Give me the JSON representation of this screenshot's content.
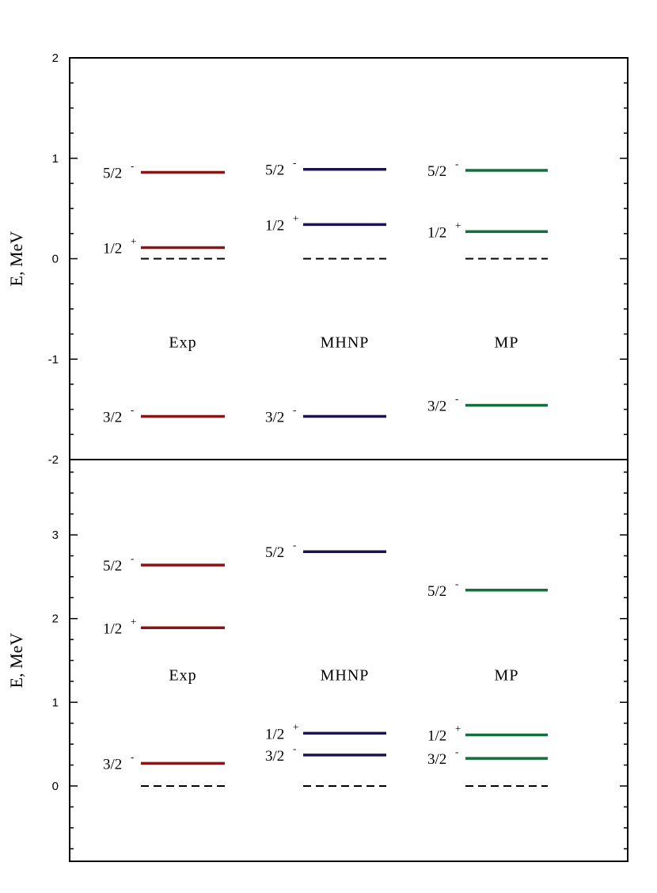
{
  "colors": {
    "Exp": "#8b1414",
    "MHNP": "#1c1450",
    "MP": "#12703a",
    "reference": "#000000",
    "frame": "#000000"
  },
  "chart_data": [
    {
      "type": "level-scheme",
      "ylabel": "E, MeV",
      "ylim": [
        -2,
        2
      ],
      "major_ticks": [
        -2,
        -1,
        0,
        1,
        2
      ],
      "minor_step": 0.25,
      "tick_labels": [
        "-2",
        "-1",
        "0",
        "1",
        "2"
      ],
      "columns": [
        {
          "name": "Exp",
          "label": "Exp",
          "label_energy": -0.83,
          "levels": [
            {
              "spin": "5/2",
              "parity": "-",
              "energy": 0.86
            },
            {
              "spin": "1/2",
              "parity": "+",
              "energy": 0.11
            },
            {
              "spin": "3/2",
              "parity": "-",
              "energy": -1.57
            }
          ],
          "reference_energy": 0
        },
        {
          "name": "MHNP",
          "label": "MHNP",
          "label_energy": -0.83,
          "levels": [
            {
              "spin": "5/2",
              "parity": "-",
              "energy": 0.89
            },
            {
              "spin": "1/2",
              "parity": "+",
              "energy": 0.34
            },
            {
              "spin": "3/2",
              "parity": "-",
              "energy": -1.57
            }
          ],
          "reference_energy": 0
        },
        {
          "name": "MP",
          "label": "MP",
          "label_energy": -0.83,
          "levels": [
            {
              "spin": "5/2",
              "parity": "-",
              "energy": 0.88
            },
            {
              "spin": "1/2",
              "parity": "+",
              "energy": 0.27
            },
            {
              "spin": "3/2",
              "parity": "-",
              "energy": -1.46
            }
          ],
          "reference_energy": 0
        }
      ]
    },
    {
      "type": "level-scheme",
      "ylabel": "E, MeV",
      "ylim": [
        -0.9,
        3.9
      ],
      "major_ticks": [
        0,
        1,
        2,
        3
      ],
      "minor_step": 0.25,
      "tick_labels": [
        "0",
        "1",
        "2",
        "3"
      ],
      "columns": [
        {
          "name": "Exp",
          "label": "Exp",
          "label_energy": 1.33,
          "levels": [
            {
              "spin": "5/2",
              "parity": "-",
              "energy": 2.64
            },
            {
              "spin": "1/2",
              "parity": "+",
              "energy": 1.89
            },
            {
              "spin": "3/2",
              "parity": "-",
              "energy": 0.27
            }
          ],
          "reference_energy": 0
        },
        {
          "name": "MHNP",
          "label": "MHNP",
          "label_energy": 1.33,
          "levels": [
            {
              "spin": "5/2",
              "parity": "-",
              "energy": 2.8
            },
            {
              "spin": "1/2",
              "parity": "+",
              "energy": 0.63
            },
            {
              "spin": "3/2",
              "parity": "-",
              "energy": 0.37
            }
          ],
          "reference_energy": 0
        },
        {
          "name": "MP",
          "label": "MP",
          "label_energy": 1.33,
          "levels": [
            {
              "spin": "5/2",
              "parity": "-",
              "energy": 2.34
            },
            {
              "spin": "1/2",
              "parity": "+",
              "energy": 0.61
            },
            {
              "spin": "3/2",
              "parity": "-",
              "energy": 0.33
            }
          ],
          "reference_energy": 0
        }
      ]
    }
  ]
}
